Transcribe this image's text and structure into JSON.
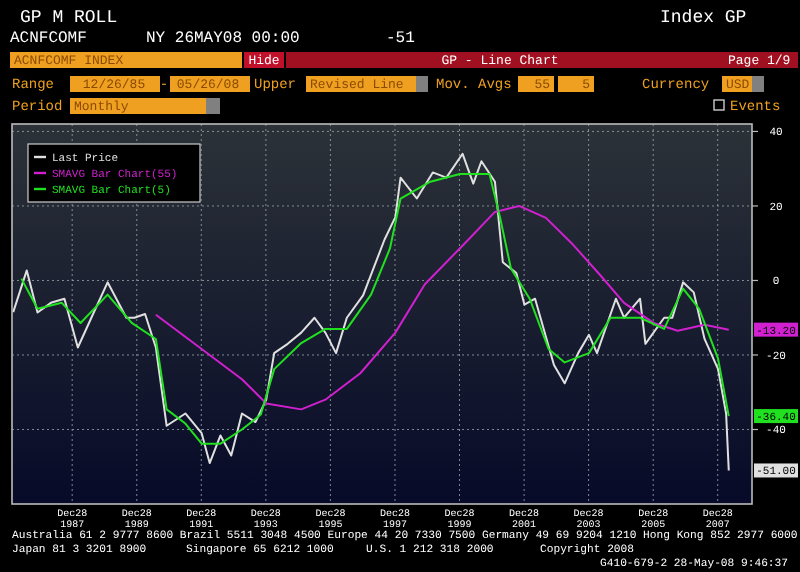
{
  "chart_data": {
    "type": "line",
    "title": "GP - Line Chart",
    "annotations": [
      "GP M ROLL",
      "Index GP",
      "ACNFCOMF",
      "NY 26MAY08 00:00",
      "-51",
      "ACNFCOMF INDEX",
      "Hide",
      "Page 1/9",
      "Range",
      "12/26/85",
      "-",
      "05/26/08",
      "Upper",
      "Revised Line",
      "Mov. Avgs",
      "55",
      "5",
      "Currency",
      "USD",
      "Period",
      "Monthly",
      "Events",
      "Australia 61 2 9777 8600 Brazil 5511 3048 4500 Europe 44 20 7330 7500 Germany 49 69 9204 1210 Hong Kong 852 2977 6000",
      "Japan 81 3 3201 8900",
      "Singapore 65 6212 1000",
      "U.S. 1 212 318 2000",
      "Copyright 2008",
      "G410-679-2 28-May-08 9:46:37",
      {
        "text": "-13.20",
        "x": "2008-05",
        "y": -13.2
      },
      {
        "text": "-36.40",
        "x": "2008-05",
        "y": -36.4
      },
      {
        "text": "-51.00",
        "x": "2008-05",
        "y": -51
      }
    ],
    "series": [
      {
        "name": "Last Price",
        "color": "#e0e0e0",
        "x": [
          "1986-03",
          "1986-08",
          "1986-12",
          "1987-05",
          "1987-10",
          "1988-03",
          "1988-08",
          "1989-02",
          "1989-09",
          "1989-12",
          "1990-04",
          "1990-08",
          "1990-12",
          "1991-07",
          "1992-01",
          "1992-04",
          "1992-08",
          "1992-12",
          "1993-04",
          "1993-09",
          "1994-01",
          "1994-04",
          "1994-09",
          "1995-02",
          "1995-07",
          "1995-11",
          "1996-03",
          "1996-07",
          "1997-01",
          "1997-09",
          "1998-01",
          "1998-03",
          "1998-09",
          "1999-03",
          "1999-08",
          "2000-02",
          "2000-06",
          "2000-09",
          "2001-02",
          "2001-05",
          "2001-10",
          "2002-01",
          "2002-05",
          "2002-12",
          "2003-04",
          "2003-09",
          "2004-01",
          "2004-04",
          "2004-11",
          "2005-02",
          "2005-08",
          "2005-10",
          "2006-05",
          "2006-08",
          "2006-12",
          "2007-04",
          "2007-08",
          "2008-01",
          "2008-04",
          "2008-05"
        ],
        "values": [
          -8.5,
          2.7,
          -8.6,
          -6,
          -4.9,
          -18,
          -10,
          -0.5,
          -10,
          -10,
          -9,
          -18,
          -39,
          -35.7,
          -41,
          -49,
          -41.6,
          -47,
          -35.7,
          -38,
          -32,
          -19.5,
          -17,
          -14,
          -10,
          -14,
          -19.5,
          -10,
          -4,
          11,
          17,
          27.6,
          22,
          29,
          27.6,
          34,
          26,
          32,
          26.5,
          4.9,
          2,
          -6.5,
          -4.9,
          -22.7,
          -27.6,
          -19.5,
          -14.6,
          -19.5,
          -4.9,
          -10,
          -4.9,
          -17,
          -10,
          -10,
          -0.5,
          -3.2,
          -15.7,
          -23.8,
          -35.7,
          -51
        ]
      },
      {
        "name": "SMAVG Bar Chart(55)",
        "color": "#d020d0",
        "x": [
          "1990-08",
          "1992-01",
          "1993-04",
          "1994-01",
          "1995-02",
          "1995-11",
          "1996-12",
          "1998-01",
          "1998-12",
          "2000-01",
          "2001-02",
          "2001-11",
          "2002-09",
          "2003-07",
          "2004-05",
          "2005-02",
          "2006-01",
          "2006-10",
          "2007-08",
          "2008-05"
        ],
        "values": [
          -9.2,
          -18.4,
          -26.5,
          -33,
          -34.6,
          -32,
          -24.9,
          -14,
          -1,
          8.6,
          18.4,
          20,
          16.8,
          9.7,
          1.6,
          -6,
          -11.4,
          -13.5,
          -11.9,
          -13.2
        ]
      },
      {
        "name": "SMAVG Bar Chart(5)",
        "color": "#20e020",
        "x": [
          "1986-06",
          "1986-12",
          "1987-09",
          "1988-04",
          "1989-02",
          "1989-11",
          "1990-08",
          "1990-12",
          "1991-07",
          "1992-01",
          "1992-08",
          "1993-04",
          "1993-11",
          "1994-04",
          "1995-02",
          "1995-11",
          "1996-07",
          "1997-04",
          "1997-11",
          "1998-03",
          "1999-02",
          "2000-01",
          "2000-12",
          "2001-04",
          "2001-08",
          "2002-03",
          "2002-10",
          "2003-04",
          "2004-01",
          "2004-09",
          "2005-08",
          "2006-05",
          "2006-12",
          "2007-06",
          "2008-01",
          "2008-05"
        ],
        "values": [
          0.5,
          -7.6,
          -6,
          -11.4,
          -3.8,
          -11.4,
          -15.7,
          -34.6,
          -38.4,
          -43.8,
          -43.8,
          -40,
          -36,
          -23.8,
          -16.8,
          -13,
          -13,
          -3.8,
          8.6,
          22,
          26.5,
          28.6,
          28.6,
          16.8,
          3.2,
          -4.9,
          -18.4,
          -22,
          -19.5,
          -10,
          -10,
          -13,
          -2.2,
          -7.6,
          -21,
          -36.4
        ]
      }
    ],
    "xlim": [
      "1986-02-15",
      "2009-01-19"
    ],
    "ylim": [
      -60,
      42
    ],
    "xticks": [
      {
        "value": "1987-12-28",
        "label": "Dec28 1987"
      },
      {
        "value": "1989-12-28",
        "label": "Dec28 1989"
      },
      {
        "value": "1991-12-28",
        "label": "Dec28 1991"
      },
      {
        "value": "1993-12-28",
        "label": "Dec28 1993"
      },
      {
        "value": "1995-12-28",
        "label": "Dec28 1995"
      },
      {
        "value": "1997-12-28",
        "label": "Dec28 1997"
      },
      {
        "value": "1999-12-28",
        "label": "Dec28 1999"
      },
      {
        "value": "2001-12-28",
        "label": "Dec28 2001"
      },
      {
        "value": "2003-12-28",
        "label": "Dec28 2003"
      },
      {
        "value": "2005-12-28",
        "label": "Dec28 2005"
      },
      {
        "value": "2007-12-28",
        "label": "Dec28 2007"
      }
    ],
    "yticks": [
      -40,
      -20,
      0,
      20,
      40
    ],
    "grid": true,
    "legend": "top left"
  }
}
